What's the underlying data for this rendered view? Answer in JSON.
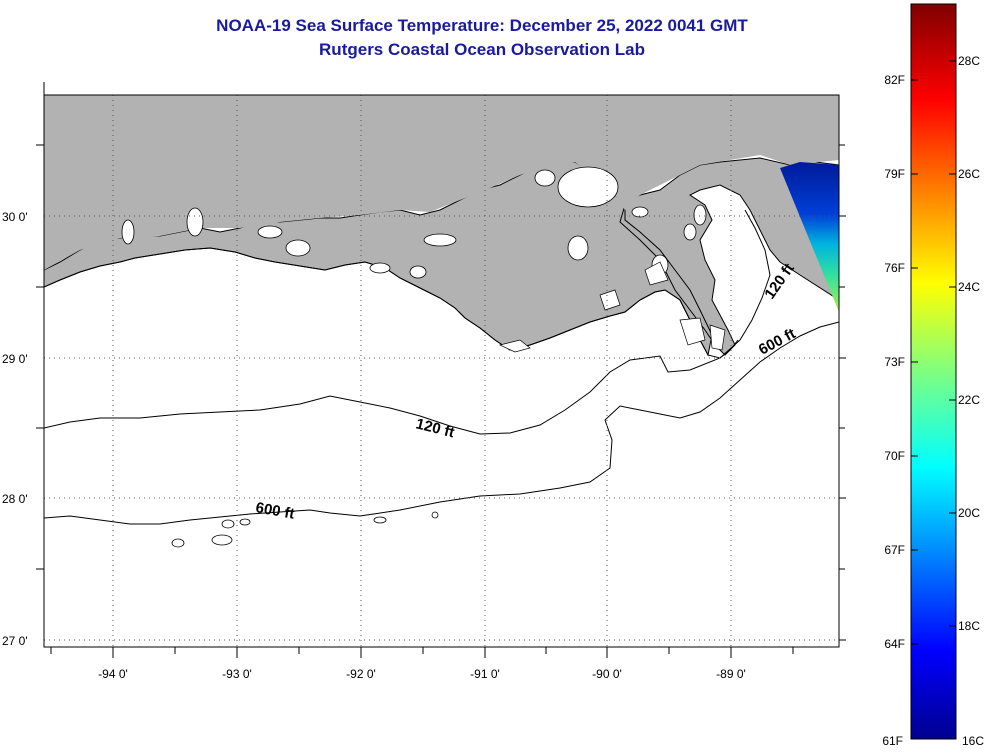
{
  "title": {
    "line1": "NOAA-19 Sea Surface Temperature:  December 25, 2022 0041 GMT",
    "line2": "Rutgers Coastal Ocean Observation Lab"
  },
  "map": {
    "lat_labels": [
      "30 0'",
      "29 0'",
      "28 0'",
      "27 0'"
    ],
    "lon_labels": [
      "-94 0'",
      "-93 0'",
      "-92 0'",
      "-91 0'",
      "-90 0'",
      "-89 0'"
    ],
    "contour_labels": {
      "c120_west": "120 ft",
      "c600_west": "600 ft",
      "c120_east": "120 ft",
      "c600_east": "600 ft"
    },
    "land_color": "#b2b2b2",
    "water_color": "#ffffff"
  },
  "colorbar": {
    "fahrenheit_labels": [
      "82F",
      "79F",
      "76F",
      "73F",
      "70F",
      "67F",
      "64F",
      "61F"
    ],
    "celsius_labels": [
      "28C",
      "26C",
      "24C",
      "22C",
      "20C",
      "18C",
      "16C"
    ]
  }
}
